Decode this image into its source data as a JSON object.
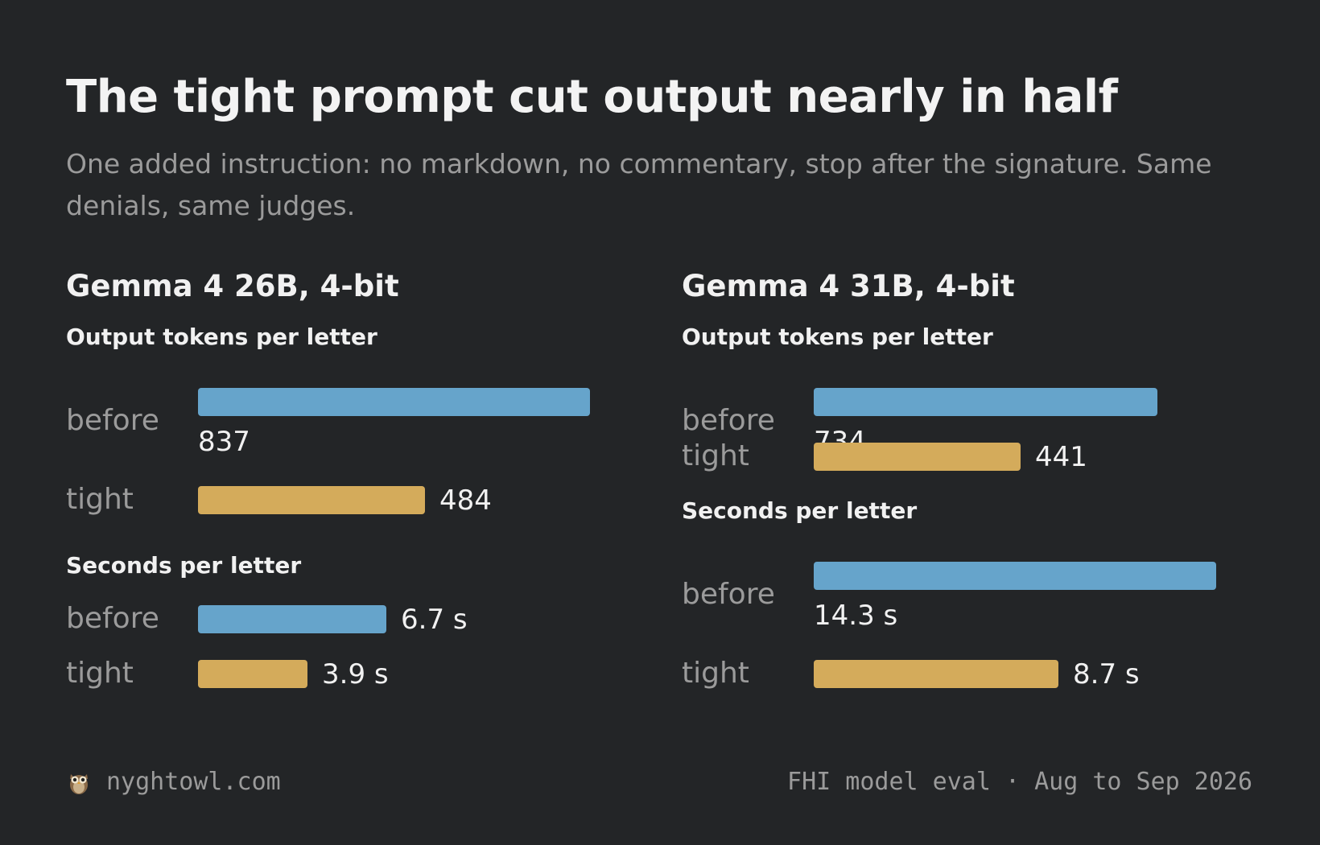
{
  "header": {
    "title": "The tight prompt cut output nearly in half",
    "subtitle": "One added instruction: no markdown, no commentary, stop after the signature. Same denials, same judges."
  },
  "colors": {
    "background": "#232527",
    "before": "#66a4cb",
    "tight": "#d4ab5b",
    "muted_text": "#9b9b9b"
  },
  "panels": [
    {
      "title": "Gemma 4 26B, 4-bit",
      "metrics": [
        {
          "title": "Output tokens per letter",
          "rows": [
            {
              "label": "before",
              "value": 837,
              "display": "837",
              "series": "before"
            },
            {
              "label": "tight",
              "value": 484,
              "display": "484",
              "series": "tight"
            }
          ]
        },
        {
          "title": "Seconds per letter",
          "rows": [
            {
              "label": "before",
              "value": 6.7,
              "display": "6.7 s",
              "series": "before"
            },
            {
              "label": "tight",
              "value": 3.9,
              "display": "3.9 s",
              "series": "tight"
            }
          ]
        }
      ]
    },
    {
      "title": "Gemma 4 31B, 4-bit",
      "metrics": [
        {
          "title": "Output tokens per letter",
          "rows": [
            {
              "label": "before",
              "value": 734,
              "display": "734",
              "series": "before"
            },
            {
              "label": "tight",
              "value": 441,
              "display": "441",
              "series": "tight"
            }
          ]
        },
        {
          "title": "Seconds per letter",
          "rows": [
            {
              "label": "before",
              "value": 14.3,
              "display": "14.3 s",
              "series": "before"
            },
            {
              "label": "tight",
              "value": 8.7,
              "display": "8.7 s",
              "series": "tight"
            }
          ]
        }
      ]
    }
  ],
  "footer": {
    "site": "nyghtowl.com",
    "site_icon": "owl-icon",
    "source": "FHI model eval · Aug to Sep 2026"
  },
  "chart_data": [
    {
      "type": "bar",
      "title": "Gemma 4 26B, 4-bit — Output tokens per letter",
      "categories": [
        "before",
        "tight"
      ],
      "values": [
        837,
        484
      ]
    },
    {
      "type": "bar",
      "title": "Gemma 4 26B, 4-bit — Seconds per letter",
      "categories": [
        "before",
        "tight"
      ],
      "values": [
        6.7,
        3.9
      ]
    },
    {
      "type": "bar",
      "title": "Gemma 4 31B, 4-bit — Output tokens per letter",
      "categories": [
        "before",
        "tight"
      ],
      "values": [
        734,
        441
      ]
    },
    {
      "type": "bar",
      "title": "Gemma 4 31B, 4-bit — Seconds per letter",
      "categories": [
        "before",
        "tight"
      ],
      "values": [
        14.3,
        8.7
      ]
    }
  ]
}
